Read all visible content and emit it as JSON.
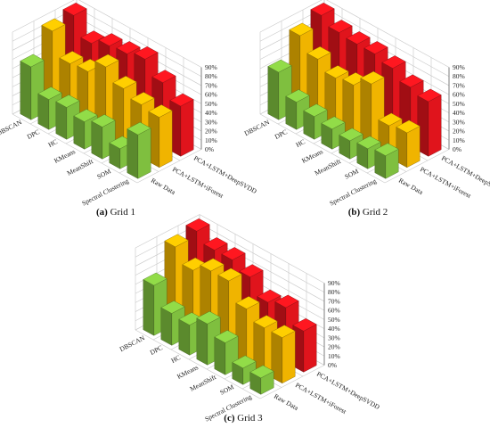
{
  "chart_data": [
    {
      "type": "bar3d",
      "caption_label": "(a)",
      "caption_text": "Grid 1",
      "x_categories": [
        "DBSCAN",
        "DPC",
        "HC",
        "KMeans",
        "MeanShift",
        "SOM",
        "Spectral Clustering"
      ],
      "y_categories": [
        "Raw Data",
        "PCA+LSTM+iForest",
        "PCA+LSTM+DeepSVDD"
      ],
      "z_ticks": [
        "0%",
        "10%",
        "20%",
        "30%",
        "40%",
        "50%",
        "60%",
        "70%",
        "80%",
        "90%"
      ],
      "z_range": [
        0,
        90
      ],
      "series": [
        {
          "name": "Raw Data",
          "color": "#7fbf3f",
          "values": [
            58,
            33,
            35,
            30,
            35,
            22,
            48
          ]
        },
        {
          "name": "PCA+LSTM+iForest",
          "color": "#f0b400",
          "values": [
            85,
            60,
            62,
            78,
            65,
            58,
            55
          ]
        },
        {
          "name": "PCA+LSTM+DeepSVDD",
          "color": "#e0141c",
          "values": [
            90,
            70,
            78,
            80,
            85,
            70,
            55
          ]
        }
      ]
    },
    {
      "type": "bar3d",
      "caption_label": "(b)",
      "caption_text": "Grid 2",
      "x_categories": [
        "DBSCAN",
        "DPC",
        "HC",
        "KMeans",
        "MeanShift",
        "SOM",
        "Spectral Clustering"
      ],
      "y_categories": [
        "Raw Data",
        "PCA+LSTM+iForest",
        "PCA+LSTM+DeepSVDD"
      ],
      "z_ticks": [
        "0%",
        "10%",
        "20%",
        "30%",
        "40%",
        "50%",
        "60%",
        "70%",
        "80%",
        "90%"
      ],
      "z_range": [
        0,
        90
      ],
      "series": [
        {
          "name": "Raw Data",
          "color": "#7fbf3f",
          "values": [
            52,
            30,
            25,
            22,
            20,
            22,
            25
          ]
        },
        {
          "name": "PCA+LSTM+iForest",
          "color": "#f0b400",
          "values": [
            80,
            65,
            55,
            58,
            70,
            35,
            38
          ]
        },
        {
          "name": "PCA+LSTM+DeepSVDD",
          "color": "#e0141c",
          "values": [
            90,
            82,
            80,
            80,
            75,
            65,
            60
          ]
        }
      ]
    },
    {
      "type": "bar3d",
      "caption_label": "(c)",
      "caption_text": "Grid 3",
      "x_categories": [
        "DBSCAN",
        "DPC",
        "HC",
        "KMeans",
        "MeanShift",
        "SOM",
        "Spectral Clustering"
      ],
      "y_categories": [
        "Raw Data",
        "PCA+LSTM+iForest",
        "PCA+LSTM+DeepSVDD"
      ],
      "z_ticks": [
        "0%",
        "10%",
        "20%",
        "30%",
        "40%",
        "50%",
        "60%",
        "70%",
        "80%",
        "90%"
      ],
      "z_range": [
        0,
        90
      ],
      "series": [
        {
          "name": "Raw Data",
          "color": "#7fbf3f",
          "values": [
            55,
            35,
            33,
            45,
            35,
            18,
            18
          ]
        },
        {
          "name": "PCA+LSTM+iForest",
          "color": "#f0b400",
          "values": [
            85,
            70,
            80,
            80,
            60,
            50,
            50
          ]
        },
        {
          "name": "PCA+LSTM+DeepSVDD",
          "color": "#e0141c",
          "values": [
            90,
            80,
            80,
            72,
            55,
            60,
            45
          ]
        }
      ]
    }
  ]
}
